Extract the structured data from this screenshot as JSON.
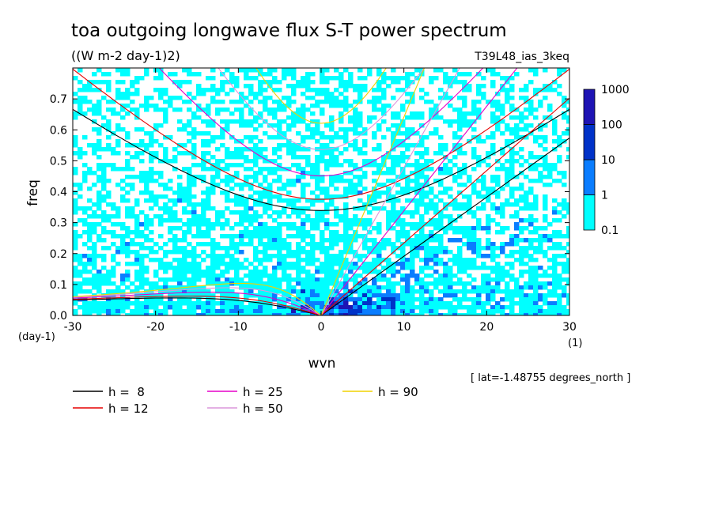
{
  "chart_data": {
    "type": "heatmap",
    "title": "toa outgoing longwave flux S-T power spectrum",
    "subtitle": "((W m-2 day-1)2)",
    "experiment": "T39L48_ias_3keq",
    "xlabel": "wvn",
    "ylabel": "freq",
    "x_unit": "(1)",
    "y_unit": "(day-1)",
    "note": "[ lat=-1.48755 degrees_north ]",
    "xlim": [
      -30,
      30
    ],
    "ylim": [
      0,
      0.8
    ],
    "xticks": [
      -30,
      -20,
      -10,
      0,
      10,
      20,
      30
    ],
    "xtick_labels": [
      "-30",
      "-20",
      "-10",
      "0",
      "10",
      "20",
      "30"
    ],
    "yticks": [
      0,
      0.1,
      0.2,
      0.3,
      0.4,
      0.5,
      0.6,
      0.7
    ],
    "ytick_labels": [
      "0.0",
      "0.1",
      "0.2",
      "0.3",
      "0.4",
      "0.5",
      "0.6",
      "0.7"
    ],
    "colorbar": {
      "levels": [
        0.1,
        1,
        10,
        100,
        1000
      ],
      "labels": [
        "0.1",
        "1",
        "10",
        "100",
        "1000"
      ],
      "colors": [
        "#00ffff",
        "#0a7dff",
        "#0032c8",
        "#1e14b4"
      ]
    },
    "dispersion_curves": [
      {
        "label": "h =  8",
        "h": 8,
        "color": "#000000"
      },
      {
        "label": "h = 12",
        "h": 12,
        "color": "#e60000"
      },
      {
        "label": "h = 25",
        "h": 25,
        "color": "#e600c8"
      },
      {
        "label": "h = 50",
        "h": 50,
        "color": "#dc96dc"
      },
      {
        "label": "h = 90",
        "h": 90,
        "color": "#f0d200"
      }
    ]
  }
}
